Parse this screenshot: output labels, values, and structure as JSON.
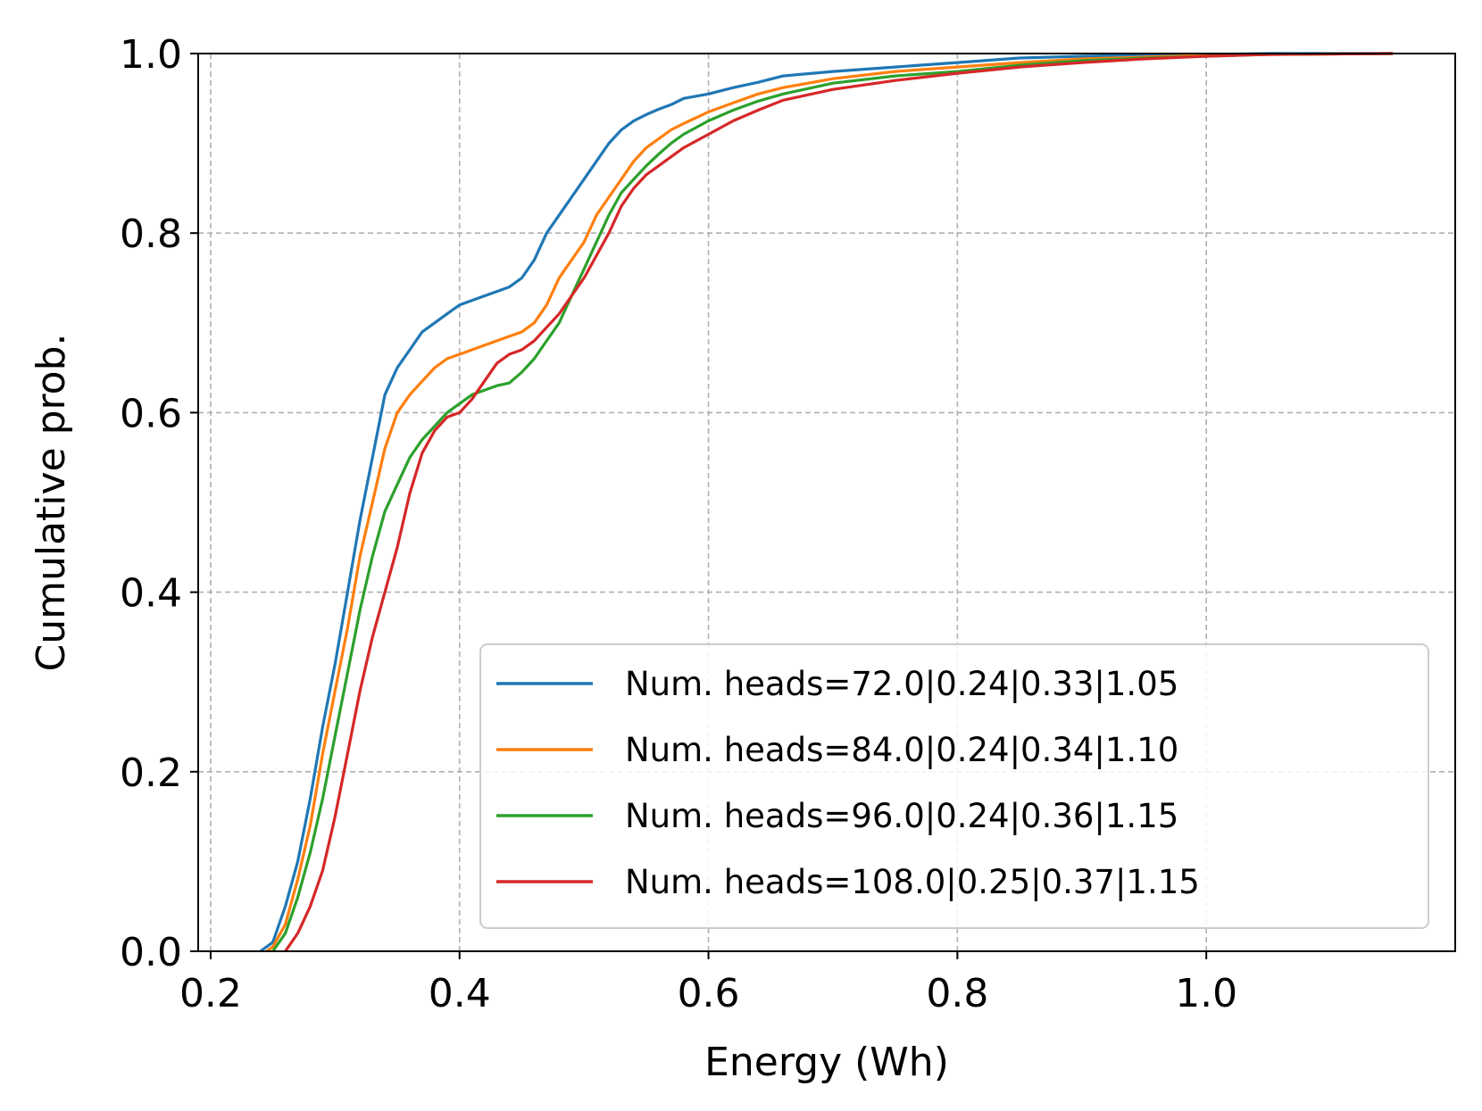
{
  "chart_data": {
    "type": "line",
    "title": "",
    "xlabel": "Energy (Wh)",
    "ylabel": "Cumulative prob.",
    "xlim": [
      0.19,
      1.2
    ],
    "ylim": [
      0.0,
      1.0
    ],
    "xticks": [
      0.2,
      0.4,
      0.6,
      0.8,
      1.0
    ],
    "xtick_labels": [
      "0.2",
      "0.4",
      "0.6",
      "0.8",
      "1.0"
    ],
    "yticks": [
      0.0,
      0.2,
      0.4,
      0.6,
      0.8,
      1.0
    ],
    "ytick_labels": [
      "0.0",
      "0.2",
      "0.4",
      "0.6",
      "0.8",
      "1.0"
    ],
    "grid": true,
    "legend_position": "lower-right",
    "series": [
      {
        "name": "Num. heads=72.0|0.24|0.33|1.05",
        "color": "#1f77b4",
        "x": [
          0.24,
          0.25,
          0.26,
          0.27,
          0.28,
          0.29,
          0.3,
          0.31,
          0.32,
          0.33,
          0.34,
          0.35,
          0.36,
          0.37,
          0.38,
          0.39,
          0.4,
          0.41,
          0.42,
          0.43,
          0.44,
          0.45,
          0.46,
          0.47,
          0.48,
          0.49,
          0.5,
          0.51,
          0.52,
          0.53,
          0.54,
          0.55,
          0.56,
          0.57,
          0.58,
          0.6,
          0.62,
          0.64,
          0.66,
          0.7,
          0.75,
          0.8,
          0.85,
          0.9,
          0.95,
          1.0,
          1.05,
          1.15
        ],
        "y": [
          0.0,
          0.01,
          0.05,
          0.1,
          0.17,
          0.25,
          0.32,
          0.4,
          0.48,
          0.55,
          0.62,
          0.65,
          0.67,
          0.69,
          0.7,
          0.71,
          0.72,
          0.725,
          0.73,
          0.735,
          0.74,
          0.75,
          0.77,
          0.8,
          0.82,
          0.84,
          0.86,
          0.88,
          0.9,
          0.915,
          0.925,
          0.932,
          0.938,
          0.943,
          0.95,
          0.955,
          0.962,
          0.968,
          0.975,
          0.98,
          0.985,
          0.99,
          0.995,
          0.997,
          0.998,
          0.999,
          1.0,
          1.0
        ]
      },
      {
        "name": "Num. heads=84.0|0.24|0.34|1.10",
        "color": "#ff7f0e",
        "x": [
          0.245,
          0.25,
          0.26,
          0.27,
          0.28,
          0.29,
          0.3,
          0.31,
          0.32,
          0.33,
          0.34,
          0.35,
          0.36,
          0.37,
          0.38,
          0.39,
          0.4,
          0.41,
          0.42,
          0.43,
          0.44,
          0.45,
          0.46,
          0.47,
          0.48,
          0.49,
          0.5,
          0.51,
          0.52,
          0.53,
          0.54,
          0.55,
          0.56,
          0.57,
          0.58,
          0.6,
          0.62,
          0.64,
          0.66,
          0.7,
          0.75,
          0.8,
          0.85,
          0.9,
          0.95,
          1.0,
          1.05,
          1.15
        ],
        "y": [
          0.0,
          0.005,
          0.03,
          0.08,
          0.14,
          0.22,
          0.29,
          0.36,
          0.44,
          0.5,
          0.56,
          0.6,
          0.62,
          0.635,
          0.65,
          0.66,
          0.665,
          0.67,
          0.675,
          0.68,
          0.685,
          0.69,
          0.7,
          0.72,
          0.75,
          0.77,
          0.79,
          0.82,
          0.84,
          0.86,
          0.88,
          0.895,
          0.905,
          0.915,
          0.922,
          0.935,
          0.945,
          0.955,
          0.962,
          0.972,
          0.98,
          0.985,
          0.99,
          0.994,
          0.996,
          0.998,
          0.999,
          1.0
        ]
      },
      {
        "name": "Num. heads=96.0|0.24|0.36|1.15",
        "color": "#2ca02c",
        "x": [
          0.25,
          0.26,
          0.27,
          0.28,
          0.29,
          0.3,
          0.31,
          0.32,
          0.33,
          0.34,
          0.35,
          0.36,
          0.37,
          0.38,
          0.39,
          0.4,
          0.41,
          0.42,
          0.43,
          0.44,
          0.45,
          0.46,
          0.47,
          0.48,
          0.49,
          0.5,
          0.51,
          0.52,
          0.53,
          0.54,
          0.55,
          0.56,
          0.57,
          0.58,
          0.6,
          0.62,
          0.64,
          0.66,
          0.7,
          0.75,
          0.8,
          0.85,
          0.9,
          0.95,
          1.0,
          1.05,
          1.15
        ],
        "y": [
          0.0,
          0.02,
          0.06,
          0.11,
          0.17,
          0.24,
          0.31,
          0.38,
          0.44,
          0.49,
          0.52,
          0.55,
          0.57,
          0.585,
          0.6,
          0.61,
          0.62,
          0.625,
          0.63,
          0.633,
          0.645,
          0.66,
          0.68,
          0.7,
          0.73,
          0.76,
          0.79,
          0.82,
          0.845,
          0.86,
          0.875,
          0.888,
          0.9,
          0.91,
          0.925,
          0.937,
          0.947,
          0.955,
          0.967,
          0.975,
          0.98,
          0.987,
          0.992,
          0.995,
          0.997,
          0.999,
          1.0
        ]
      },
      {
        "name": "Num. heads=108.0|0.25|0.37|1.15",
        "color": "#d62728",
        "x": [
          0.26,
          0.27,
          0.28,
          0.29,
          0.3,
          0.31,
          0.32,
          0.33,
          0.34,
          0.35,
          0.36,
          0.37,
          0.38,
          0.39,
          0.4,
          0.41,
          0.42,
          0.43,
          0.44,
          0.45,
          0.46,
          0.47,
          0.48,
          0.49,
          0.5,
          0.51,
          0.52,
          0.53,
          0.54,
          0.55,
          0.56,
          0.57,
          0.58,
          0.6,
          0.62,
          0.64,
          0.66,
          0.7,
          0.75,
          0.8,
          0.85,
          0.9,
          0.95,
          1.0,
          1.05,
          1.15
        ],
        "y": [
          0.0,
          0.02,
          0.05,
          0.09,
          0.15,
          0.22,
          0.29,
          0.35,
          0.4,
          0.45,
          0.51,
          0.555,
          0.58,
          0.595,
          0.6,
          0.615,
          0.635,
          0.655,
          0.665,
          0.67,
          0.68,
          0.695,
          0.71,
          0.73,
          0.75,
          0.775,
          0.8,
          0.83,
          0.85,
          0.865,
          0.875,
          0.885,
          0.895,
          0.91,
          0.925,
          0.937,
          0.948,
          0.96,
          0.97,
          0.978,
          0.985,
          0.99,
          0.994,
          0.997,
          0.999,
          1.0
        ]
      }
    ]
  }
}
